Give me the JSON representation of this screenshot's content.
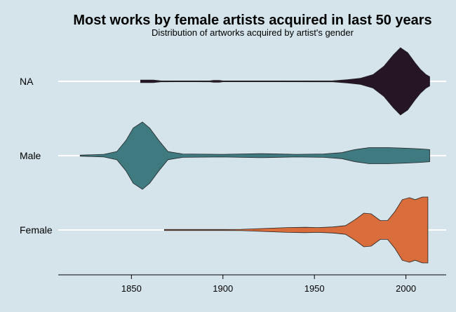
{
  "chart_data": {
    "type": "violin",
    "title": "Most works by female artists acquired in last 50 years",
    "subtitle": "Distribution of artworks acquired by artist's gender",
    "xlabel": "",
    "ylabel": "",
    "xlim": [
      1810,
      2022
    ],
    "x_ticks": [
      "1850",
      "1900",
      "1950",
      "2000"
    ],
    "x_tick_values": [
      1850,
      1900,
      1950,
      2000
    ],
    "categories": [
      "NA",
      "Male",
      "Female"
    ],
    "grid": true,
    "legend": "none",
    "series": [
      {
        "category": "NA",
        "color": "#251525",
        "density": [
          [
            1855,
            0.04
          ],
          [
            1862,
            0.04
          ],
          [
            1866,
            0.015
          ],
          [
            1875,
            0.012
          ],
          [
            1885,
            0.012
          ],
          [
            1893,
            0.015
          ],
          [
            1895,
            0.03
          ],
          [
            1898,
            0.03
          ],
          [
            1900,
            0.012
          ],
          [
            1930,
            0.012
          ],
          [
            1960,
            0.015
          ],
          [
            1968,
            0.05
          ],
          [
            1975,
            0.09
          ],
          [
            1982,
            0.2
          ],
          [
            1988,
            0.45
          ],
          [
            1993,
            0.78
          ],
          [
            1997,
            1.0
          ],
          [
            2001,
            0.85
          ],
          [
            2005,
            0.55
          ],
          [
            2008,
            0.35
          ],
          [
            2011,
            0.2
          ],
          [
            2013,
            0.14
          ]
        ]
      },
      {
        "category": "Male",
        "color": "#3e7a80",
        "density": [
          [
            1822,
            0.015
          ],
          [
            1835,
            0.04
          ],
          [
            1842,
            0.12
          ],
          [
            1847,
            0.45
          ],
          [
            1851,
            0.82
          ],
          [
            1856,
            1.0
          ],
          [
            1860,
            0.82
          ],
          [
            1865,
            0.45
          ],
          [
            1870,
            0.12
          ],
          [
            1878,
            0.05
          ],
          [
            1900,
            0.04
          ],
          [
            1920,
            0.06
          ],
          [
            1940,
            0.04
          ],
          [
            1955,
            0.05
          ],
          [
            1965,
            0.09
          ],
          [
            1972,
            0.18
          ],
          [
            1980,
            0.24
          ],
          [
            1990,
            0.24
          ],
          [
            2000,
            0.22
          ],
          [
            2008,
            0.2
          ],
          [
            2013,
            0.18
          ]
        ]
      },
      {
        "category": "Female",
        "color": "#d96d3c",
        "density": [
          [
            1868,
            0.015
          ],
          [
            1900,
            0.015
          ],
          [
            1910,
            0.018
          ],
          [
            1915,
            0.03
          ],
          [
            1925,
            0.05
          ],
          [
            1935,
            0.07
          ],
          [
            1945,
            0.08
          ],
          [
            1952,
            0.07
          ],
          [
            1960,
            0.09
          ],
          [
            1967,
            0.13
          ],
          [
            1972,
            0.3
          ],
          [
            1977,
            0.5
          ],
          [
            1981,
            0.48
          ],
          [
            1986,
            0.28
          ],
          [
            1990,
            0.28
          ],
          [
            1994,
            0.55
          ],
          [
            1998,
            0.9
          ],
          [
            2002,
            0.96
          ],
          [
            2005,
            0.9
          ],
          [
            2009,
            0.98
          ],
          [
            2012,
            0.98
          ]
        ]
      }
    ]
  }
}
